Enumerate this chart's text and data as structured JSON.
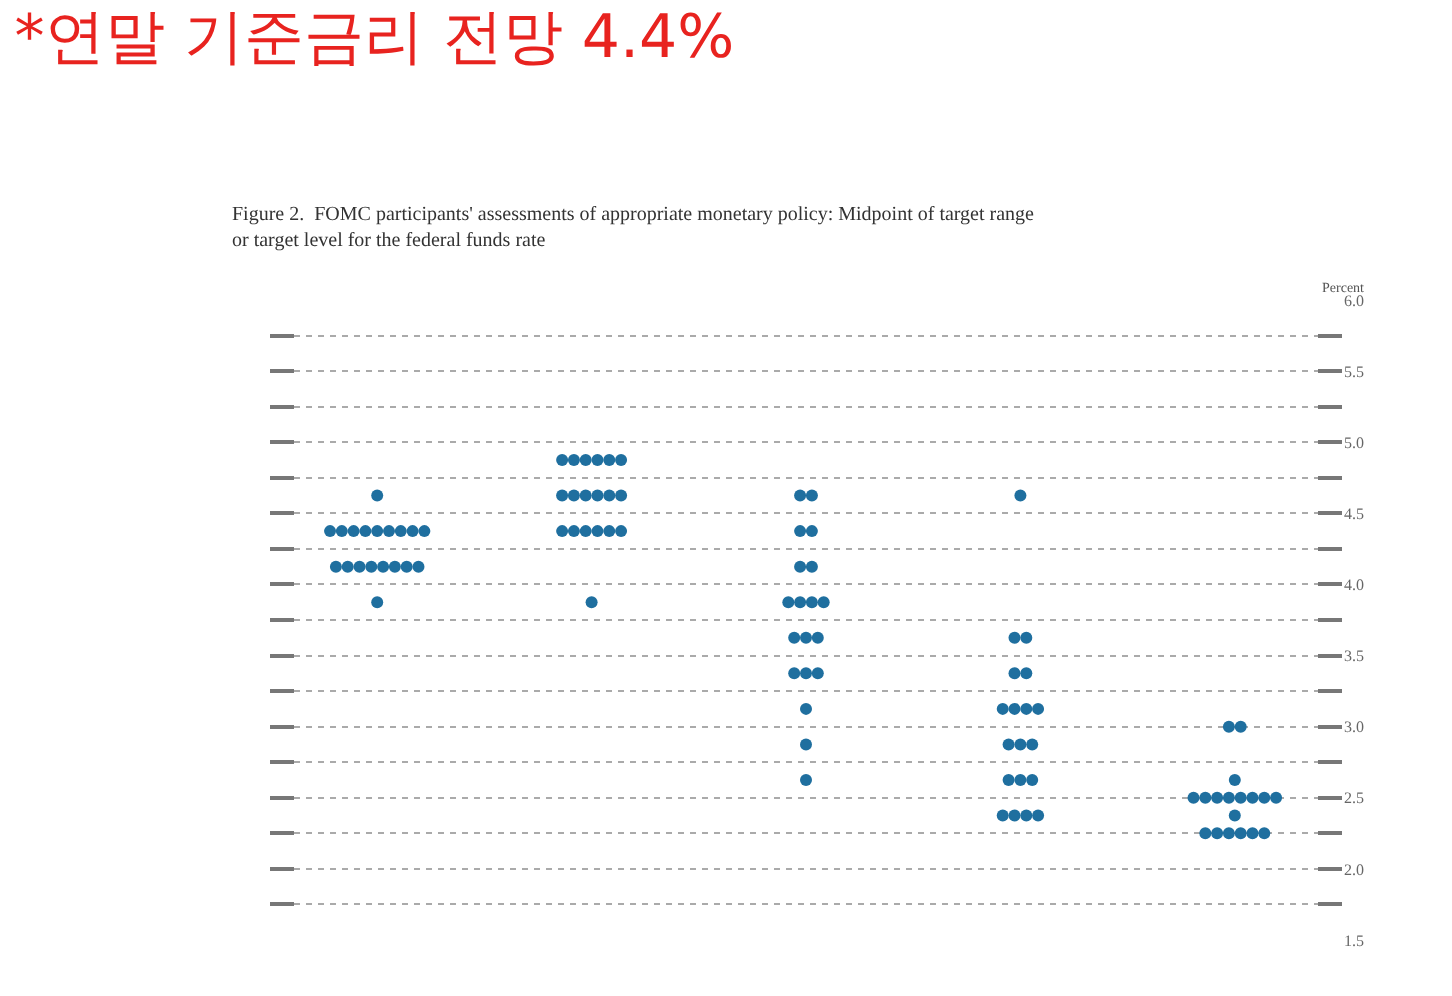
{
  "chart_data": {
    "type": "scatter",
    "title": "*연말 기준금리 전망 4.4%",
    "subtitle": "Figure 2.  FOMC participants' assessments of appropriate monetary policy: Midpoint of target range or target level for the federal funds rate",
    "ylabel": "Percent",
    "categories": [
      null,
      null,
      null,
      null,
      null
    ],
    "ylim": [
      1.5,
      6.0
    ],
    "yticks": [
      {
        "value": 1.5,
        "label": "1.5"
      },
      {
        "value": 1.75,
        "label": null
      },
      {
        "value": 2,
        "label": "2.0"
      },
      {
        "value": 2.25,
        "label": null
      },
      {
        "value": 2.5,
        "label": "2.5"
      },
      {
        "value": 2.75,
        "label": null
      },
      {
        "value": 3,
        "label": "3.0"
      },
      {
        "value": 3.25,
        "label": null
      },
      {
        "value": 3.5,
        "label": "3.5"
      },
      {
        "value": 3.75,
        "label": null
      },
      {
        "value": 4,
        "label": "4.0"
      },
      {
        "value": 4.25,
        "label": null
      },
      {
        "value": 4.5,
        "label": "4.5"
      },
      {
        "value": 4.75,
        "label": null
      },
      {
        "value": 5,
        "label": "5.0"
      },
      {
        "value": 5.25,
        "label": null
      },
      {
        "value": 5.5,
        "label": "5.5"
      },
      {
        "value": 5.75,
        "label": null
      },
      {
        "value": 6,
        "label": "6.0"
      }
    ],
    "tick_labels": "y",
    "grid": "y",
    "marker": "circle",
    "series": [
      {
        "color": "#1f6f9f",
        "values": [
          4.625,
          4.875,
          4.625,
          4.625,
          3.0
        ]
      },
      {
        "color": "#1f6f9f",
        "values": [
          4.375,
          4.875,
          4.625,
          3.625,
          3.0
        ]
      },
      {
        "color": "#1f6f9f",
        "values": [
          4.375,
          4.875,
          4.375,
          3.625,
          2.625
        ]
      },
      {
        "color": "#1f6f9f",
        "values": [
          4.375,
          4.875,
          4.375,
          3.375,
          2.5
        ]
      },
      {
        "color": "#1f6f9f",
        "values": [
          4.375,
          4.875,
          4.125,
          3.375,
          2.5
        ]
      },
      {
        "color": "#1f6f9f",
        "values": [
          4.375,
          4.875,
          4.125,
          3.125,
          2.5
        ]
      },
      {
        "color": "#1f6f9f",
        "values": [
          4.375,
          4.625,
          3.875,
          3.125,
          2.5
        ]
      },
      {
        "color": "#1f6f9f",
        "values": [
          4.375,
          4.625,
          3.875,
          3.125,
          2.5
        ]
      },
      {
        "color": "#1f6f9f",
        "values": [
          4.375,
          4.625,
          3.875,
          3.125,
          2.5
        ]
      },
      {
        "color": "#1f6f9f",
        "values": [
          4.375,
          4.625,
          3.875,
          2.875,
          2.5
        ]
      },
      {
        "color": "#1f6f9f",
        "values": [
          4.125,
          4.625,
          3.625,
          2.875,
          2.5
        ]
      },
      {
        "color": "#1f6f9f",
        "values": [
          4.125,
          4.625,
          3.625,
          2.875,
          2.375
        ]
      },
      {
        "color": "#1f6f9f",
        "values": [
          4.125,
          4.375,
          3.625,
          2.625,
          2.25
        ]
      },
      {
        "color": "#1f6f9f",
        "values": [
          4.125,
          4.375,
          3.375,
          2.625,
          2.25
        ]
      },
      {
        "color": "#1f6f9f",
        "values": [
          4.125,
          4.375,
          3.375,
          2.625,
          2.25
        ]
      },
      {
        "color": "#1f6f9f",
        "values": [
          4.125,
          4.375,
          3.375,
          2.375,
          2.25
        ]
      },
      {
        "color": "#1f6f9f",
        "values": [
          4.125,
          4.375,
          3.125,
          2.375,
          2.25
        ]
      },
      {
        "color": "#1f6f9f",
        "values": [
          4.125,
          4.375,
          2.875,
          2.375,
          2.25
        ]
      },
      {
        "color": "#1f6f9f",
        "values": [
          3.875,
          3.875,
          2.625,
          2.375,
          null
        ]
      }
    ]
  }
}
